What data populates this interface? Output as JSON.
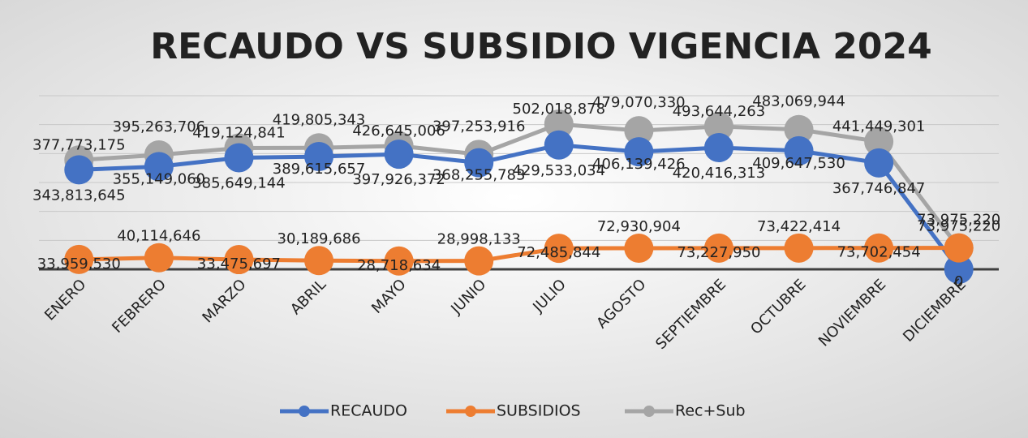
{
  "chart_data": {
    "type": "line",
    "title": "RECAUDO VS SUBSIDIO VIGENCIA 2024",
    "categories": [
      "ENERO",
      "FEBRERO",
      "MARZO",
      "ABRIL",
      "MAYO",
      "JUNIO",
      "JULIO",
      "AGOSTO",
      "SEPTIEMBRE",
      "OCTUBRE",
      "NOVIEMBRE",
      "DICIEMBRE"
    ],
    "series": [
      {
        "name": "RECAUDO",
        "color": "#4472c4",
        "values": [
          343813645,
          355149060,
          385649144,
          389615657,
          397926372,
          368255783,
          429533034,
          406139426,
          420416313,
          409647530,
          367746847,
          0
        ],
        "value_labels": [
          "343,813,645",
          "355,149,060",
          "385,649,144",
          "389,615,657",
          "397,926,372",
          "368,255,783",
          "429,533,034",
          "406,139,426",
          "420,416,313",
          "409,647,530",
          "367,746,847",
          "0"
        ]
      },
      {
        "name": "SUBSIDIOS",
        "color": "#ed7d31",
        "values": [
          33959530,
          40114646,
          33475697,
          30189686,
          28718634,
          28998133,
          72485844,
          72930904,
          73227950,
          73422414,
          73702454,
          73975220
        ],
        "value_labels": [
          "33,959,530",
          "40,114,646",
          "33,475,697",
          "30,189,686",
          "28,718,634",
          "28,998,133",
          "72,485,844",
          "72,930,904",
          "73,227,950",
          "73,422,414",
          "73,702,454",
          "73,975,220"
        ]
      },
      {
        "name": "Rec+Sub",
        "color": "#a5a5a5",
        "values": [
          377773175,
          395263706,
          419124841,
          419805343,
          426645006,
          397253916,
          502018878,
          479070330,
          493644263,
          483069944,
          441449301,
          73975220
        ],
        "value_labels": [
          "377,773,175",
          "395,263,706",
          "419,124,841",
          "419,805,343",
          "426,645,006",
          "397,253,916",
          "502,018,878",
          "479,070,330",
          "493,644,263",
          "483,069,944",
          "441,449,301",
          "73,975,220"
        ]
      }
    ],
    "ylim": [
      0,
      600000000
    ],
    "yticks": [
      0,
      100000000,
      200000000,
      300000000,
      400000000,
      500000000,
      600000000
    ],
    "grid": true
  }
}
